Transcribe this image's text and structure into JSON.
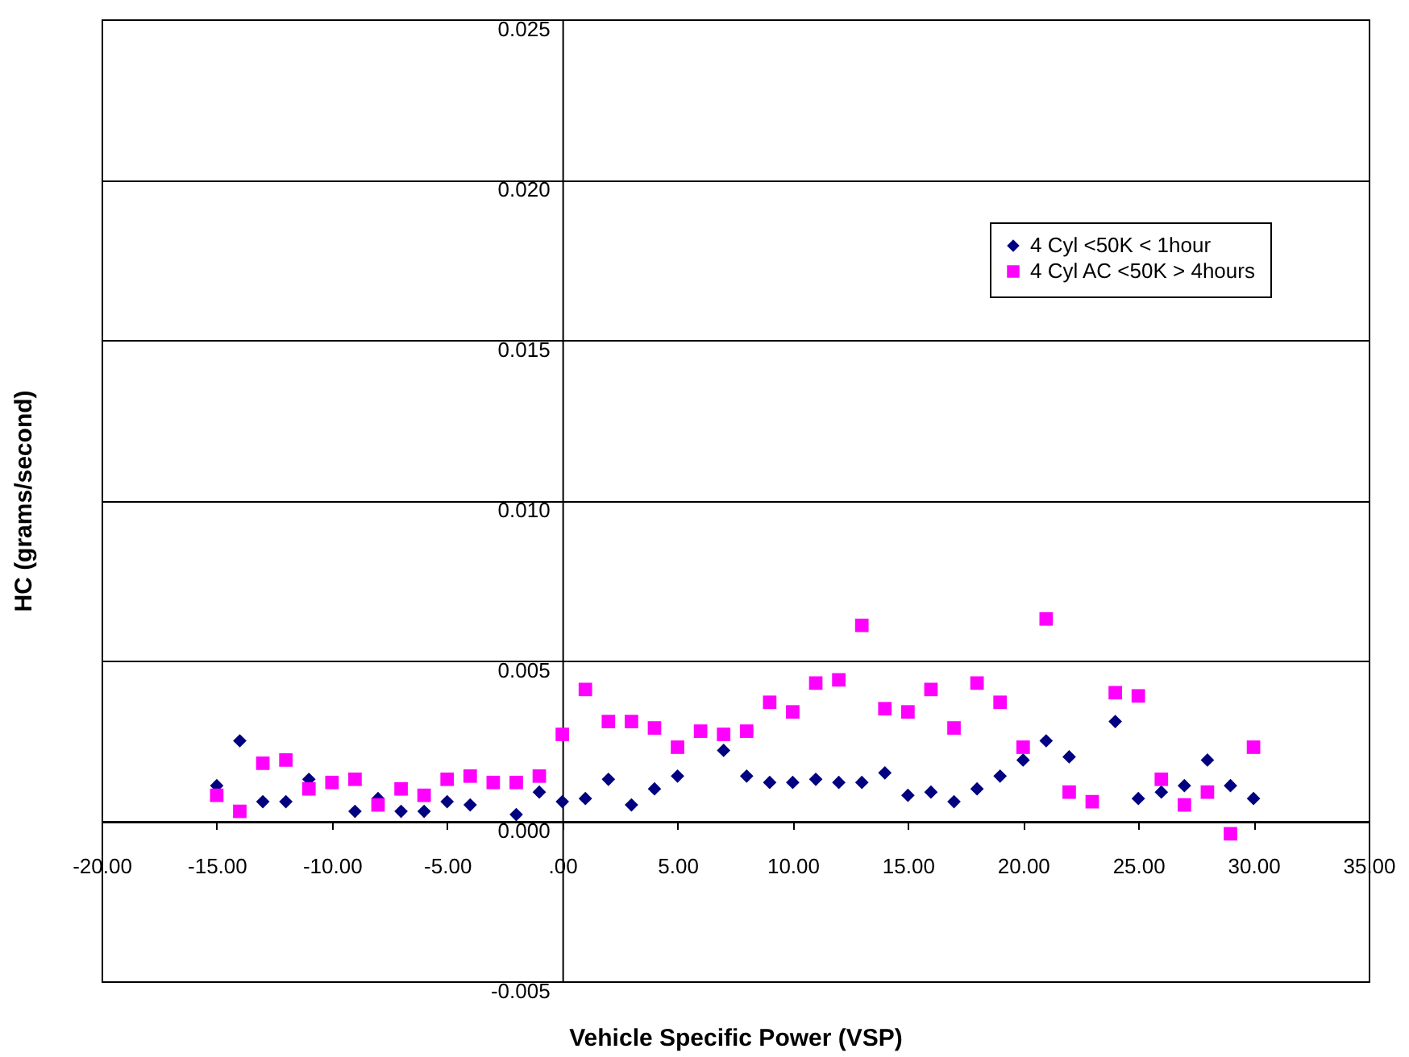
{
  "chart_data": {
    "type": "scatter",
    "xlabel": "Vehicle Specific Power (VSP)",
    "ylabel": "HC (grams/second)",
    "x": [
      -15,
      -14,
      -13,
      -12,
      -11,
      -10,
      -9,
      -8,
      -7,
      -6,
      -5,
      -4,
      -3,
      -2,
      -1,
      0,
      1,
      2,
      3,
      4,
      5,
      6,
      7,
      8,
      9,
      10,
      11,
      12,
      13,
      14,
      15,
      16,
      17,
      18,
      19,
      20,
      21,
      22,
      23,
      24,
      25,
      26,
      27,
      28,
      29,
      30
    ],
    "series": [
      {
        "name": "4 Cyl <50K < 1hour",
        "color": "#000080",
        "marker": "diamond",
        "values": [
          0.0011,
          0.0025,
          0.0006,
          0.0006,
          0.0013,
          null,
          0.0003,
          0.0007,
          0.0003,
          0.0003,
          0.0006,
          0.0005,
          null,
          0.0002,
          0.0009,
          0.0006,
          0.0007,
          0.0013,
          0.0005,
          0.001,
          0.0014,
          null,
          0.0022,
          0.0014,
          0.0012,
          0.0012,
          0.0013,
          0.0012,
          0.0012,
          0.0015,
          0.0008,
          0.0009,
          0.0006,
          0.001,
          0.0014,
          0.0019,
          0.0025,
          0.002,
          null,
          0.0031,
          0.0007,
          0.0009,
          0.0011,
          0.0019,
          0.0011,
          0.0007
        ]
      },
      {
        "name": "4 Cyl AC <50K > 4hours",
        "color": "#ff00ff",
        "marker": "square",
        "values": [
          0.0008,
          0.0003,
          0.0018,
          0.0019,
          0.001,
          0.0012,
          0.0013,
          0.0005,
          0.001,
          0.0008,
          0.0013,
          0.0014,
          0.0012,
          0.0012,
          0.0014,
          0.0027,
          0.0041,
          0.0031,
          0.0031,
          0.0029,
          0.0023,
          0.0028,
          0.0027,
          0.0028,
          0.0037,
          0.0034,
          0.0043,
          0.0044,
          0.0061,
          0.0035,
          0.0034,
          0.0041,
          0.0029,
          0.0043,
          0.0037,
          0.0023,
          0.0063,
          0.0009,
          0.0006,
          0.004,
          0.0039,
          0.0013,
          0.0005,
          0.0009,
          -0.0004,
          0.0023
        ]
      }
    ],
    "xlim": [
      -20,
      35
    ],
    "xticks": [
      {
        "value": -20,
        "label": "-20.00"
      },
      {
        "value": -15,
        "label": "-15.00"
      },
      {
        "value": -10,
        "label": "-10.00"
      },
      {
        "value": -5,
        "label": "-5.00"
      },
      {
        "value": 0,
        "label": ".00"
      },
      {
        "value": 5,
        "label": "5.00"
      },
      {
        "value": 10,
        "label": "10.00"
      },
      {
        "value": 15,
        "label": "15.00"
      },
      {
        "value": 20,
        "label": "20.00"
      },
      {
        "value": 25,
        "label": "25.00"
      },
      {
        "value": 30,
        "label": "30.00"
      },
      {
        "value": 35,
        "label": "35.00"
      }
    ],
    "ylim": [
      -0.005,
      0.025
    ],
    "yticks": [
      {
        "value": -0.005,
        "label": "-0.005"
      },
      {
        "value": 0,
        "label": "0.000"
      },
      {
        "value": 0.005,
        "label": "0.005"
      },
      {
        "value": 0.01,
        "label": "0.010"
      },
      {
        "value": 0.015,
        "label": "0.015"
      },
      {
        "value": 0.02,
        "label": "0.020"
      },
      {
        "value": 0.025,
        "label": "0.025"
      }
    ],
    "grid": "y",
    "legend": "top right"
  }
}
